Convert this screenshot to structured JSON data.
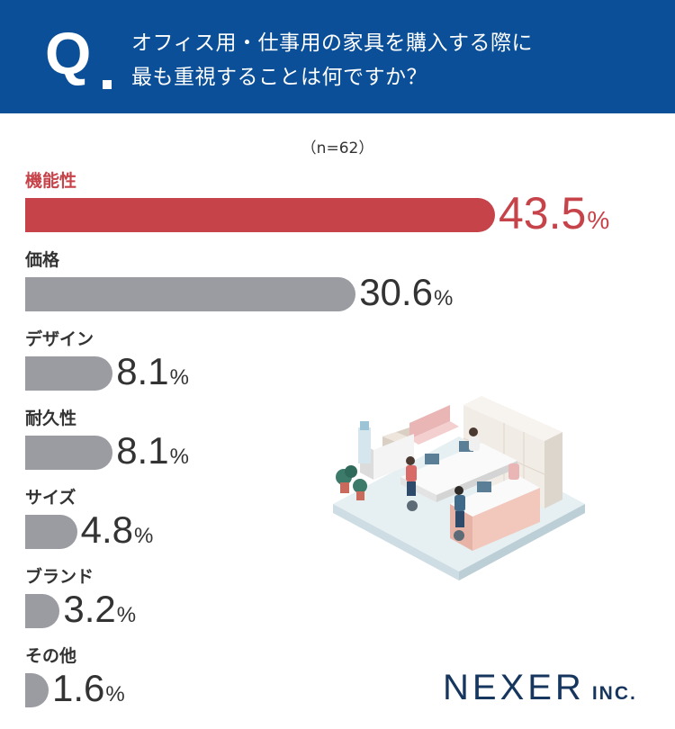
{
  "header": {
    "q_letter": "Q",
    "question_line1": "オフィス用・仕事用の家具を購入する際に",
    "question_line2": "最も重視することは何ですか？"
  },
  "sample_size": "（n=62）",
  "chart_data": {
    "type": "bar",
    "orientation": "horizontal",
    "title": "オフィス用・仕事用の家具を購入する際に最も重視することは何ですか？",
    "note": "（n=62）",
    "unit": "%",
    "categories": [
      "機能性",
      "価格",
      "デザイン",
      "耐久性",
      "サイズ",
      "ブランド",
      "その他"
    ],
    "values": [
      43.5,
      30.6,
      8.1,
      8.1,
      4.8,
      3.2,
      1.6
    ],
    "value_labels": [
      "43.5",
      "30.6",
      "8.1",
      "8.1",
      "4.8",
      "3.2",
      "1.6"
    ],
    "percent_sign": "%",
    "highlight_index": 0,
    "colors": {
      "highlight": "#c7434a",
      "default": "#9b9ca1"
    }
  },
  "colors": {
    "header_bg": "#0a4f97",
    "logo": "#16365e"
  },
  "logo": {
    "main": "NEXER",
    "suffix": "INC."
  }
}
